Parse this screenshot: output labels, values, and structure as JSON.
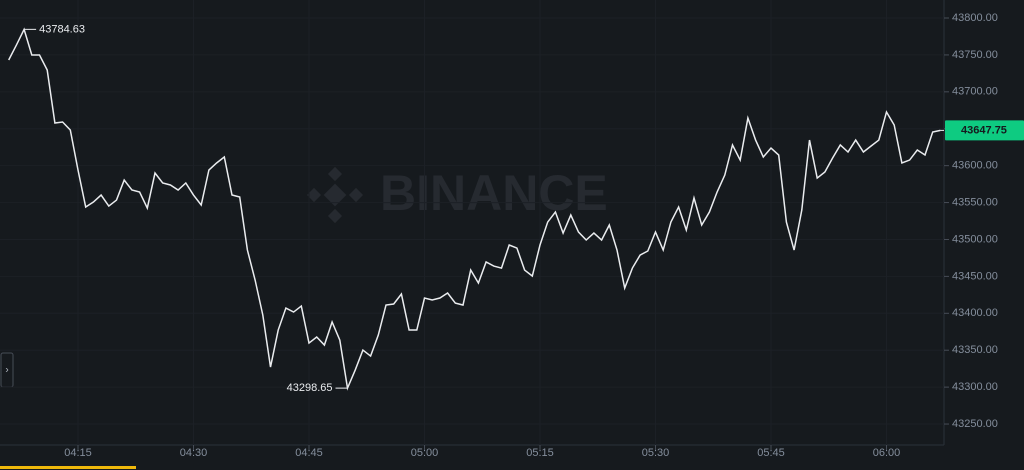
{
  "chart_data": {
    "type": "line",
    "watermark": "BINANCE",
    "categories": [
      null,
      null,
      null,
      null,
      null,
      null,
      null,
      null,
      null,
      "04:15",
      null,
      null,
      null,
      null,
      null,
      null,
      null,
      null,
      null,
      null,
      null,
      null,
      null,
      null,
      "04:30",
      null,
      null,
      null,
      null,
      null,
      null,
      null,
      null,
      null,
      null,
      null,
      null,
      null,
      null,
      "04:45",
      null,
      null,
      null,
      null,
      null,
      null,
      null,
      null,
      null,
      null,
      null,
      null,
      null,
      null,
      "05:00",
      null,
      null,
      null,
      null,
      null,
      null,
      null,
      null,
      null,
      null,
      null,
      null,
      null,
      null,
      "05:15",
      null,
      null,
      null,
      null,
      null,
      null,
      null,
      null,
      null,
      null,
      null,
      null,
      null,
      null,
      "05:30",
      null,
      null,
      null,
      null,
      null,
      null,
      null,
      null,
      null,
      null,
      null,
      null,
      null,
      null,
      "05:45",
      null,
      null,
      null,
      null,
      null,
      null,
      null,
      null,
      null,
      null,
      null,
      null,
      null,
      null,
      "06:00",
      null,
      null,
      null,
      null,
      null,
      null,
      null
    ],
    "values": [
      43743.1,
      43763.4,
      43784.63,
      43749.9,
      43749.9,
      43729.6,
      43657.8,
      43659.1,
      43648.3,
      43594.1,
      43544,
      43550.7,
      43560.2,
      43545.3,
      43553.4,
      43580.5,
      43567,
      43564.3,
      43542.6,
      43590,
      43576.5,
      43573.8,
      43567,
      43576.5,
      43560.2,
      43546.7,
      43594.1,
      43603.6,
      43611.7,
      43560.2,
      43557.5,
      43485.7,
      43445.1,
      43397.7,
      43327.2,
      43377.3,
      43407.1,
      43401.7,
      43409.8,
      43359.7,
      43367.9,
      43357,
      43388.2,
      43363.8,
      43298.65,
      43323.1,
      43350.2,
      43342.1,
      43370.6,
      43411.2,
      43412.6,
      43426.1,
      43377.3,
      43377.3,
      43420.7,
      43418,
      43420.7,
      43427.5,
      43413.9,
      43411.2,
      43458.6,
      43441,
      43469.5,
      43464,
      43461.3,
      43492.5,
      43488.4,
      43458.6,
      43450.5,
      43492.5,
      43523.6,
      43537.2,
      43508.7,
      43533.1,
      43510.1,
      43499.3,
      43508.7,
      43499.3,
      43519.6,
      43485.7,
      43434.2,
      43461.3,
      43478.9,
      43484.4,
      43510.1,
      43485.7,
      43523.6,
      43544,
      43512.8,
      43556.2,
      43519.6,
      43537.2,
      43564.3,
      43587.3,
      43628,
      43607.6,
      43664.5,
      43634.7,
      43611.7,
      43623.9,
      43614.4,
      43523.6,
      43485.7,
      43539.9,
      43634.7,
      43583.2,
      43591.4,
      43610.3,
      43628,
      43618.5,
      43634.7,
      43618.5,
      43626.6,
      43634.7,
      43672.7,
      43655,
      43603.6,
      43607.6,
      43621.2,
      43614.4,
      43645.6,
      43647.75
    ],
    "color": "#eaecef",
    "annotations": [
      "43784.63",
      "43298.65"
    ],
    "last_price": "43647.75",
    "last_price_color": "#0ecb81",
    "ylim": [
      43221.6,
      43824.4
    ],
    "yticks": [
      {
        "value": 43250,
        "label": "43250.00"
      },
      {
        "value": 43300,
        "label": "43300.00"
      },
      {
        "value": 43350,
        "label": "43350.00"
      },
      {
        "value": 43400,
        "label": "43400.00"
      },
      {
        "value": 43450,
        "label": "43450.00"
      },
      {
        "value": 43500,
        "label": "43500.00"
      },
      {
        "value": 43550,
        "label": "43550.00"
      },
      {
        "value": 43600,
        "label": "43600.00"
      },
      {
        "value": 43650,
        "label": "43650.00"
      },
      {
        "value": 43700,
        "label": "43700.00"
      },
      {
        "value": 43750,
        "label": "43750.00"
      },
      {
        "value": 43800,
        "label": "43800.00"
      }
    ],
    "grid": true
  }
}
